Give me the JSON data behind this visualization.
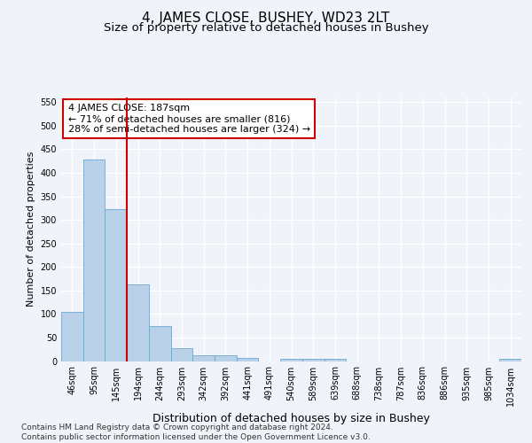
{
  "title": "4, JAMES CLOSE, BUSHEY, WD23 2LT",
  "subtitle": "Size of property relative to detached houses in Bushey",
  "xlabel": "Distribution of detached houses by size in Bushey",
  "ylabel": "Number of detached properties",
  "categories": [
    "46sqm",
    "95sqm",
    "145sqm",
    "194sqm",
    "244sqm",
    "293sqm",
    "342sqm",
    "392sqm",
    "441sqm",
    "491sqm",
    "540sqm",
    "589sqm",
    "639sqm",
    "688sqm",
    "738sqm",
    "787sqm",
    "836sqm",
    "886sqm",
    "935sqm",
    "985sqm",
    "1034sqm"
  ],
  "values": [
    105,
    428,
    322,
    163,
    75,
    27,
    13,
    13,
    7,
    0,
    5,
    5,
    5,
    0,
    0,
    0,
    0,
    0,
    0,
    0,
    5
  ],
  "bar_color": "#b8d0e8",
  "bar_edge_color": "#6aaad4",
  "vline_x_index": 3,
  "vline_color": "#cc0000",
  "annotation_text": "4 JAMES CLOSE: 187sqm\n← 71% of detached houses are smaller (816)\n28% of semi-detached houses are larger (324) →",
  "annotation_box_facecolor": "#ffffff",
  "annotation_box_edgecolor": "#cc0000",
  "ylim": [
    0,
    560
  ],
  "yticks": [
    0,
    50,
    100,
    150,
    200,
    250,
    300,
    350,
    400,
    450,
    500,
    550
  ],
  "footer_text": "Contains HM Land Registry data © Crown copyright and database right 2024.\nContains public sector information licensed under the Open Government Licence v3.0.",
  "background_color": "#f0f4fa",
  "grid_color": "#ffffff",
  "title_fontsize": 11,
  "subtitle_fontsize": 9.5,
  "xlabel_fontsize": 9,
  "ylabel_fontsize": 8,
  "tick_fontsize": 7,
  "annotation_fontsize": 8,
  "footer_fontsize": 6.5
}
